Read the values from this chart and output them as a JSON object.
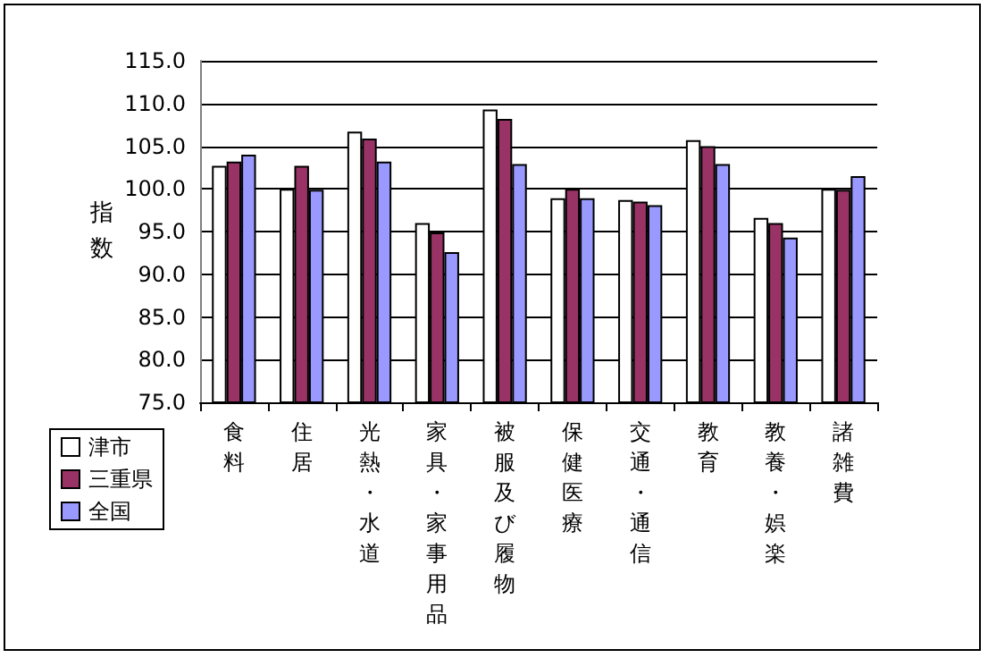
{
  "chart_data": {
    "type": "bar",
    "ylabel": "指数",
    "categories": [
      "食料",
      "住居",
      "光熱・水道",
      "家具・家事用品",
      "被服及び履物",
      "保健医療",
      "交通・通信",
      "教育",
      "教養・娯楽",
      "諸雑費"
    ],
    "series": [
      {
        "name": "津市",
        "color": "#ffffff",
        "values": [
          102.7,
          100.0,
          106.7,
          96.0,
          109.3,
          98.9,
          98.7,
          105.7,
          96.6,
          100.0
        ]
      },
      {
        "name": "三重県",
        "color": "#993366",
        "values": [
          103.2,
          102.7,
          105.9,
          94.9,
          108.2,
          100.0,
          98.5,
          105.0,
          96.0,
          99.9
        ]
      },
      {
        "name": "全国",
        "color": "#9999ff",
        "values": [
          104.0,
          99.9,
          103.2,
          92.6,
          102.9,
          98.9,
          98.1,
          102.9,
          94.3,
          101.5
        ]
      }
    ],
    "ylim": [
      75,
      115
    ],
    "yticks": [
      {
        "value": 75,
        "label": "75.0"
      },
      {
        "value": 80,
        "label": "80.0"
      },
      {
        "value": 85,
        "label": "85.0"
      },
      {
        "value": 90,
        "label": "90.0"
      },
      {
        "value": 95,
        "label": "95.0"
      },
      {
        "value": 100,
        "label": "100.0"
      },
      {
        "value": 105,
        "label": "105.0"
      },
      {
        "value": 110,
        "label": "110.0"
      },
      {
        "value": 115,
        "label": "115.0"
      }
    ],
    "grid": "y",
    "legend": "bottom left"
  }
}
